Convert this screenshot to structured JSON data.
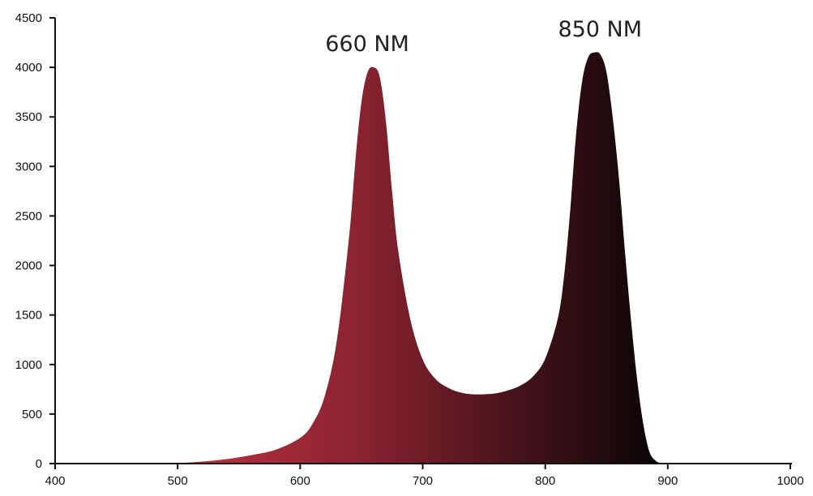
{
  "chart_data": {
    "type": "area",
    "title": "",
    "xlabel": "",
    "ylabel": "",
    "xlim": [
      400,
      1000
    ],
    "ylim": [
      0,
      4500
    ],
    "x_ticks": [
      400,
      500,
      600,
      700,
      800,
      900,
      1000
    ],
    "y_ticks": [
      0,
      500,
      1000,
      1500,
      2000,
      2500,
      3000,
      3500,
      4000,
      4500
    ],
    "grid": false,
    "legend": "none",
    "series": [
      {
        "x": [
          400,
          480,
          500,
          520,
          540,
          560,
          580,
          600,
          610,
          620,
          630,
          640,
          645,
          650,
          655,
          660,
          665,
          670,
          675,
          680,
          690,
          700,
          710,
          720,
          730,
          740,
          750,
          760,
          770,
          780,
          790,
          800,
          810,
          815,
          820,
          825,
          830,
          835,
          840,
          845,
          850,
          855,
          860,
          865,
          870,
          875,
          880,
          885,
          890,
          895
        ],
        "y": [
          0,
          0,
          5,
          20,
          45,
          85,
          140,
          260,
          400,
          680,
          1250,
          2300,
          3050,
          3650,
          3950,
          4000,
          3900,
          3450,
          2750,
          2150,
          1450,
          1050,
          860,
          770,
          720,
          700,
          700,
          710,
          740,
          790,
          880,
          1060,
          1450,
          1850,
          2500,
          3300,
          3850,
          4100,
          4150,
          4130,
          3950,
          3500,
          2900,
          2150,
          1450,
          850,
          400,
          120,
          30,
          0
        ],
        "colors": {
          "start": "#e03a4a",
          "end": "#070405"
        }
      }
    ],
    "annotations": [
      {
        "text": "660 NM",
        "x": 660,
        "y": 4000
      },
      {
        "text": "850 NM",
        "x": 850,
        "y": 4150
      }
    ]
  }
}
